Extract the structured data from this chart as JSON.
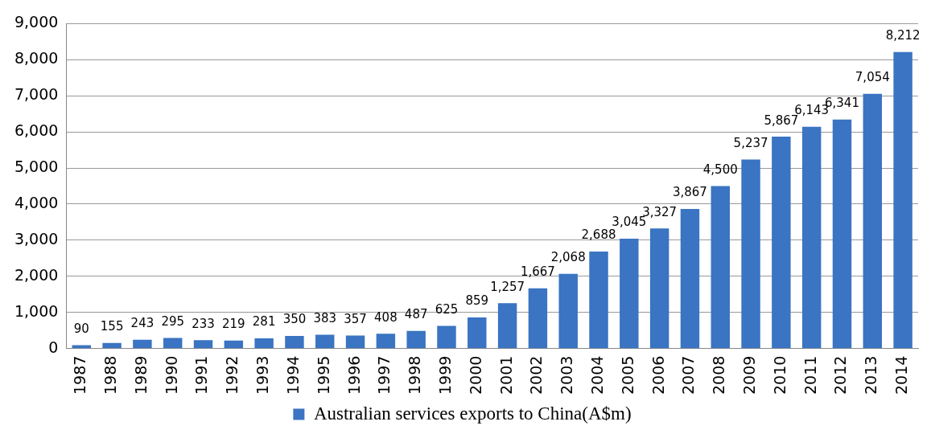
{
  "chart_data": {
    "type": "bar",
    "categories": [
      "1987",
      "1988",
      "1989",
      "1990",
      "1991",
      "1992",
      "1993",
      "1994",
      "1995",
      "1996",
      "1997",
      "1998",
      "1999",
      "2000",
      "2001",
      "2002",
      "2003",
      "2004",
      "2005",
      "2006",
      "2007",
      "2008",
      "2009",
      "2010",
      "2011",
      "2012",
      "2013",
      "2014"
    ],
    "series": [
      {
        "name": "Australian services exports to China(A$m)",
        "color": "#3a74c2",
        "values": [
          90,
          155,
          243,
          295,
          233,
          219,
          281,
          350,
          383,
          357,
          408,
          487,
          625,
          859,
          1257,
          1667,
          2068,
          2688,
          3045,
          3327,
          3867,
          4500,
          5237,
          5867,
          6143,
          6341,
          7054,
          8212
        ],
        "value_labels": [
          "90",
          "155",
          "243",
          "295",
          "233",
          "219",
          "281",
          "350",
          "383",
          "357",
          "408",
          "487",
          "625",
          "859",
          "1,257",
          "1,667",
          "2,068",
          "2,688",
          "3,045",
          "3,327",
          "3,867",
          "4,500",
          "5,237",
          "5,867",
          "6,143",
          "6,341",
          "7,054",
          "8,212"
        ]
      }
    ],
    "ylim": [
      0,
      9000
    ],
    "yticks": [
      {
        "value": 0,
        "label": "0"
      },
      {
        "value": 1000,
        "label": "1,000"
      },
      {
        "value": 2000,
        "label": "2,000"
      },
      {
        "value": 3000,
        "label": "3,000"
      },
      {
        "value": 4000,
        "label": "4,000"
      },
      {
        "value": 5000,
        "label": "5,000"
      },
      {
        "value": 6000,
        "label": "6,000"
      },
      {
        "value": 7000,
        "label": "7,000"
      },
      {
        "value": 8000,
        "label": "8,000"
      },
      {
        "value": 9000,
        "label": "9,000"
      }
    ],
    "grid": "y",
    "legend": "bottom"
  }
}
